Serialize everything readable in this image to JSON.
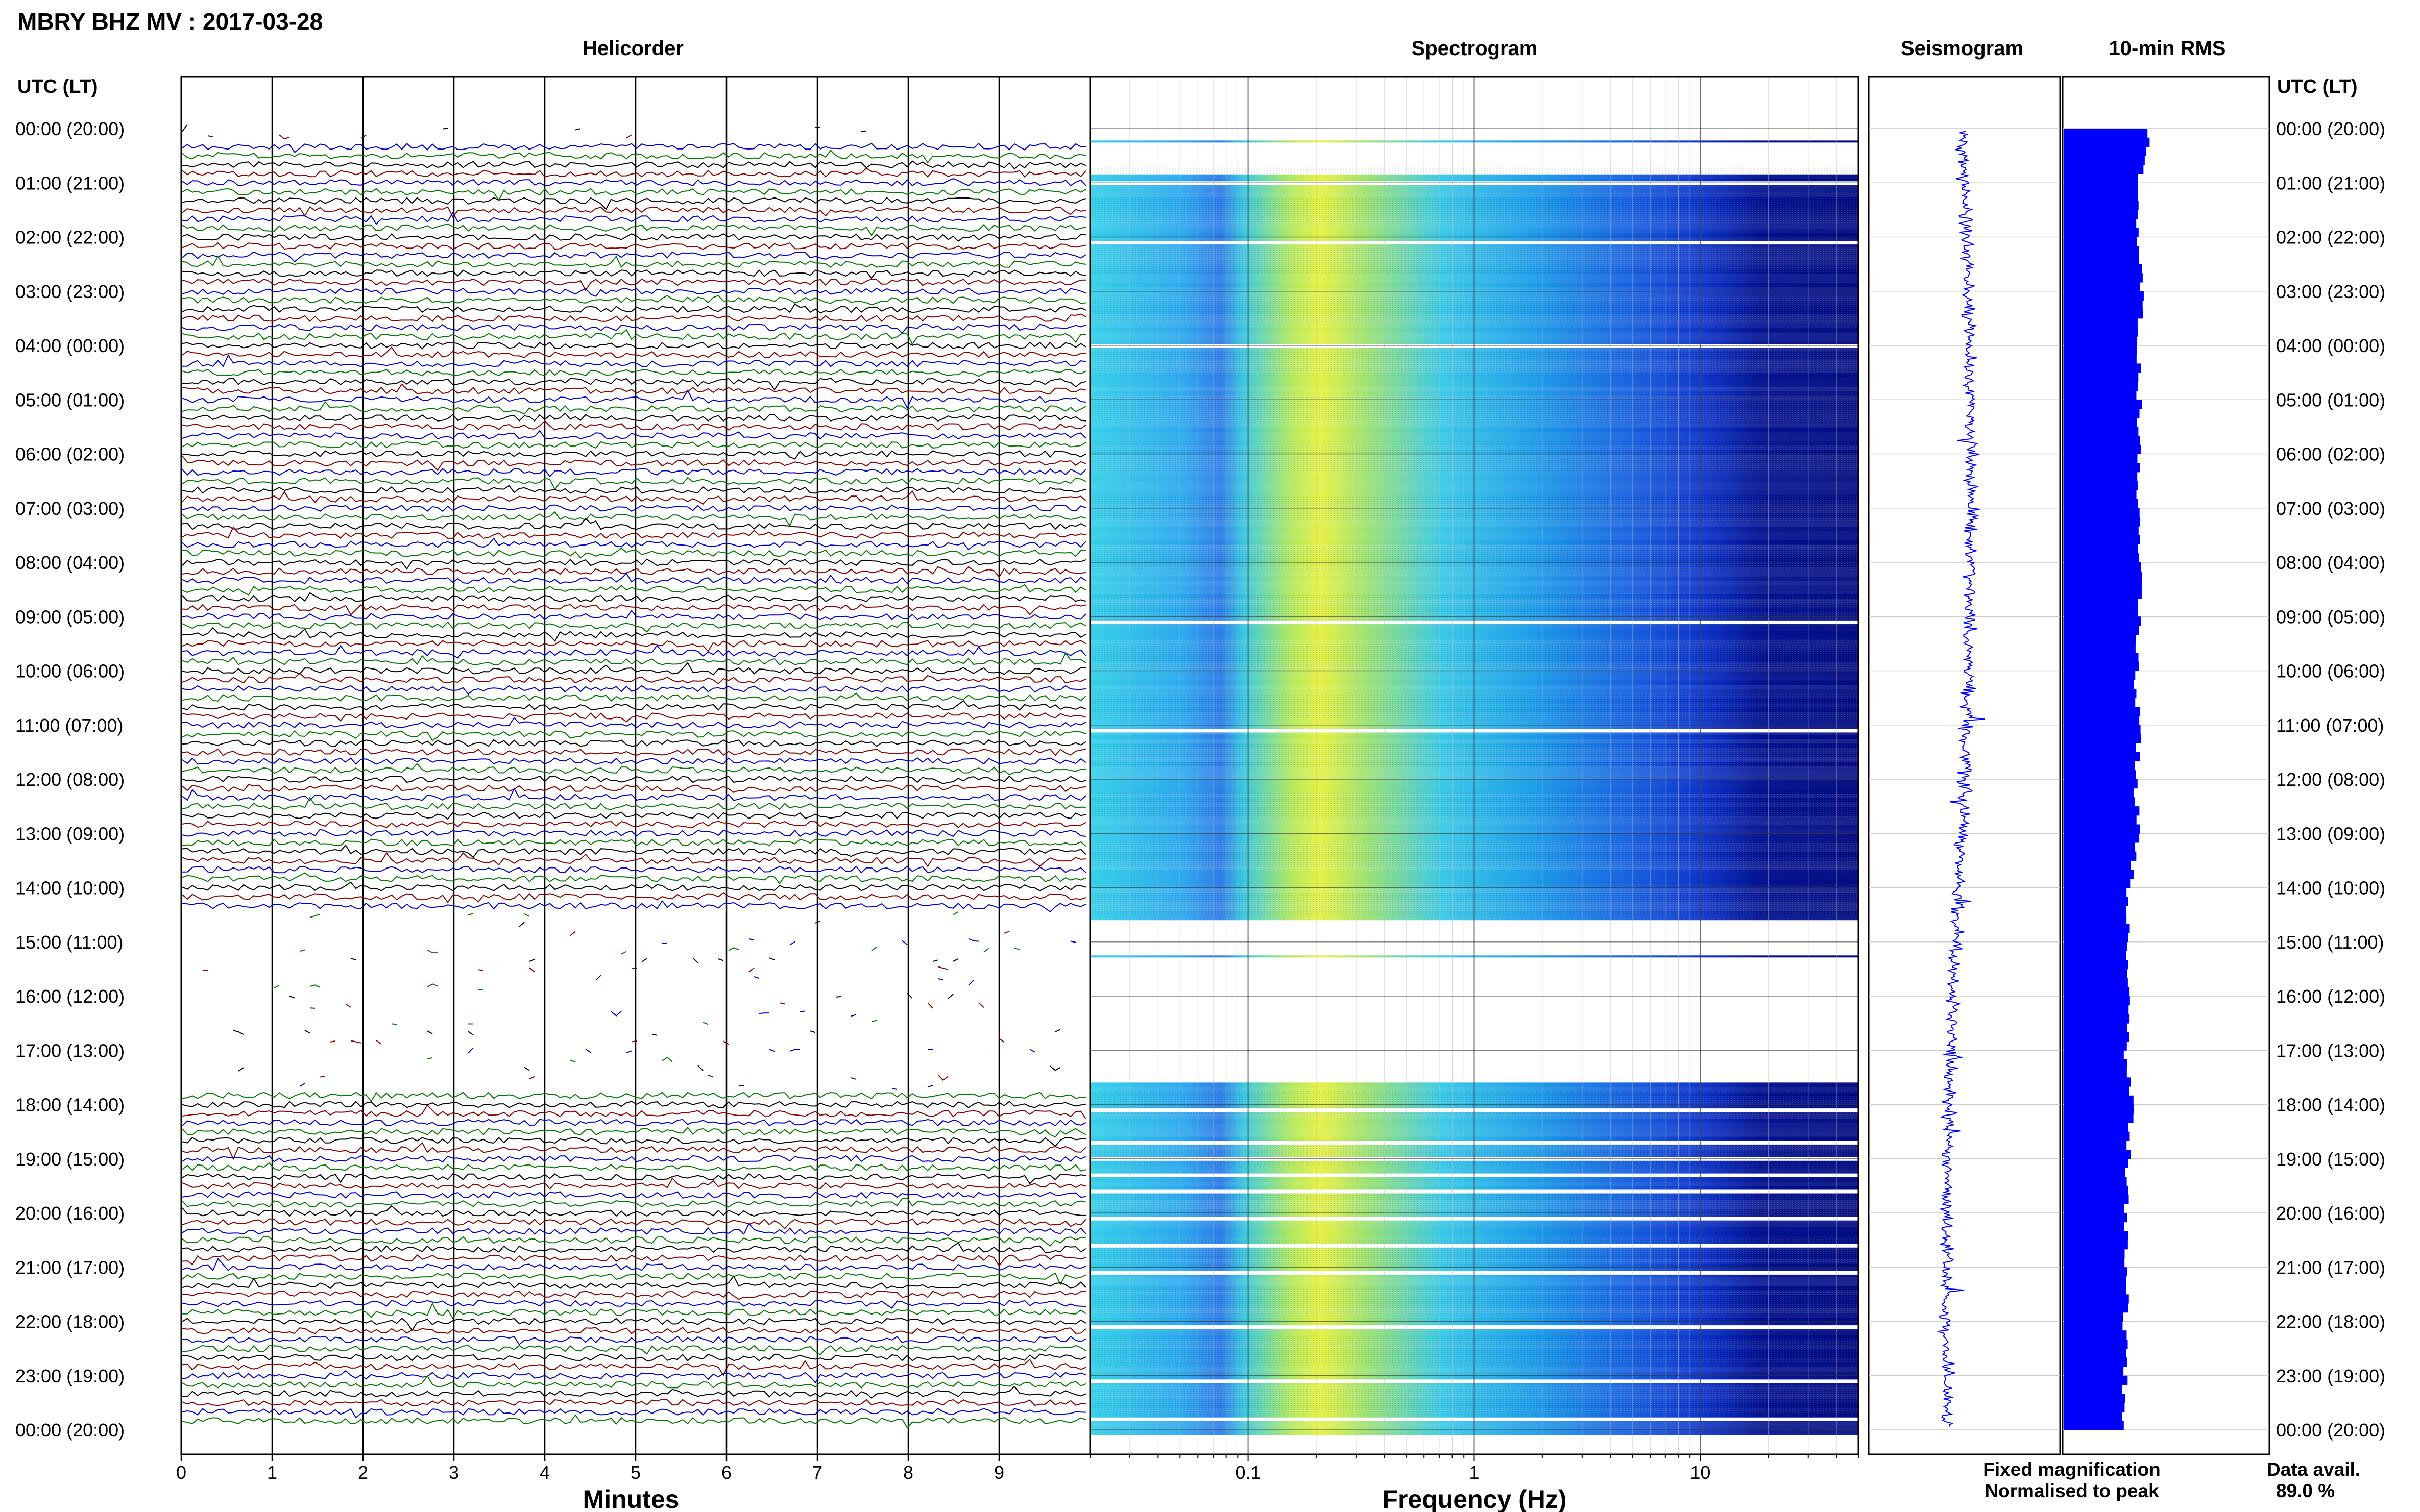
{
  "header": {
    "title": "MBRY BHZ MV : 2017-03-28",
    "left_axis_label": "UTC (LT)",
    "right_axis_label": "UTC (LT)"
  },
  "panels": {
    "helicorder": "Helicorder",
    "spectrogram": "Spectrogram",
    "seismogram": "Seismogram",
    "rms": "10-min RMS"
  },
  "axes": {
    "minutes_label": "Minutes",
    "frequency_label": "Frequency (Hz)"
  },
  "legend": {
    "fixed": "Fixed magnification",
    "fixed_color": "#0000ff",
    "normalised": "Normalised to peak",
    "normalised_color": "#ff0000"
  },
  "data_avail": {
    "label": "Data avail.",
    "value": "89.0 %"
  },
  "colors": {
    "trace_cycle": [
      "#000000",
      "#8b0000",
      "#0000cc",
      "#007a00"
    ],
    "seismogram": "#0000ff",
    "rms_bar": "#0000ff"
  },
  "chart_data": [
    {
      "type": "line",
      "name": "helicorder",
      "title": "Helicorder",
      "xlabel": "Minutes",
      "x_ticks": [
        "0",
        "1",
        "2",
        "3",
        "4",
        "5",
        "6",
        "7",
        "8",
        "9"
      ],
      "xlim": [
        0,
        10
      ],
      "y_ticks": [
        "00:00 (20:00)",
        "01:00 (21:00)",
        "02:00 (22:00)",
        "03:00 (23:00)",
        "04:00 (00:00)",
        "05:00 (01:00)",
        "06:00 (02:00)",
        "07:00 (03:00)",
        "08:00 (04:00)",
        "09:00 (05:00)",
        "10:00 (06:00)",
        "11:00 (07:00)",
        "12:00 (08:00)",
        "13:00 (09:00)",
        "14:00 (10:00)",
        "15:00 (11:00)",
        "16:00 (12:00)",
        "17:00 (13:00)",
        "18:00 (14:00)",
        "19:00 (15:00)",
        "20:00 (16:00)",
        "21:00 (17:00)",
        "22:00 (18:00)",
        "23:00 (19:00)",
        "00:00 (20:00)"
      ],
      "rows_per_hour": 6,
      "gaps_utc_hours": [
        [
          0.0,
          0.2
        ],
        [
          14.4,
          17.8
        ]
      ]
    },
    {
      "type": "heatmap",
      "name": "spectrogram",
      "title": "Spectrogram",
      "xlabel": "Frequency (Hz)",
      "x_scale": "log",
      "xlim": [
        0.02,
        50
      ],
      "x_ticks": [
        0.1,
        1,
        10
      ],
      "x_tick_labels": [
        "0.1",
        "1",
        "10"
      ],
      "colormap": "jet",
      "peak_band_hz": [
        0.15,
        0.35
      ],
      "data_gaps_utc_hours": [
        [
          0.0,
          0.7
        ],
        [
          14.5,
          17.5
        ]
      ],
      "white_line_utc_hours": [
        1.0,
        2.1,
        4.0,
        9.1,
        11.1,
        18.1,
        18.7,
        19.0,
        19.3,
        19.6,
        20.1,
        20.6,
        21.1,
        22.1,
        23.1,
        23.8
      ]
    },
    {
      "type": "line",
      "name": "seismogram",
      "title": "Seismogram",
      "orientation": "vertical"
    },
    {
      "type": "bar",
      "name": "rms",
      "title": "10-min RMS",
      "orientation": "horizontal",
      "interval_minutes": 10,
      "relative_values_by_hour": [
        0.42,
        0.36,
        0.37,
        0.38,
        0.36,
        0.37,
        0.37,
        0.36,
        0.38,
        0.37,
        0.35,
        0.37,
        0.35,
        0.36,
        0.31,
        0.31,
        0.32,
        0.3,
        0.33,
        0.31,
        0.3,
        0.31,
        0.3,
        0.3,
        0.29
      ]
    }
  ]
}
